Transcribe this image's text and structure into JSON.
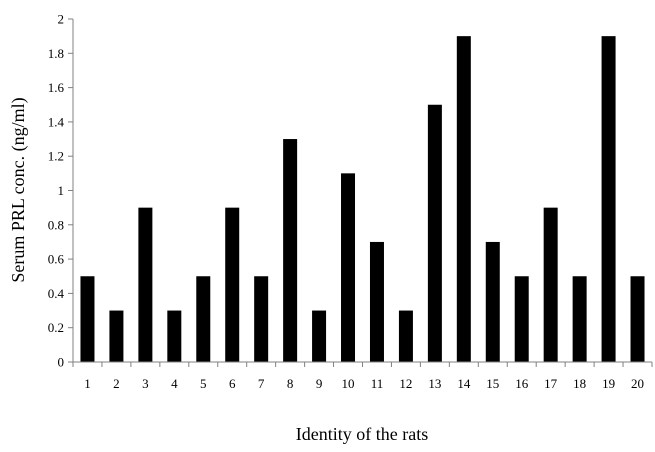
{
  "chart_data": {
    "type": "bar",
    "title": "",
    "xlabel": "Identity of the rats",
    "ylabel": "Serum PRL conc. (ng/ml)",
    "categories": [
      "1",
      "2",
      "3",
      "4",
      "5",
      "6",
      "7",
      "8",
      "9",
      "10",
      "11",
      "12",
      "13",
      "14",
      "15",
      "16",
      "17",
      "18",
      "19",
      "20"
    ],
    "values": [
      0.5,
      0.3,
      0.9,
      0.3,
      0.5,
      0.9,
      0.5,
      1.3,
      0.3,
      1.1,
      0.7,
      0.3,
      1.5,
      1.9,
      0.7,
      0.5,
      0.9,
      0.5,
      1.9,
      0.5
    ],
    "ylim": [
      0,
      2
    ],
    "yticks": [
      "0",
      "0.2",
      "0.4",
      "0.6",
      "0.8",
      "1",
      "1.2",
      "1.4",
      "1.6",
      "1.8",
      "2"
    ],
    "grid": false,
    "legend": "none",
    "bar_color": "#000000",
    "axis_color": "#808080"
  }
}
